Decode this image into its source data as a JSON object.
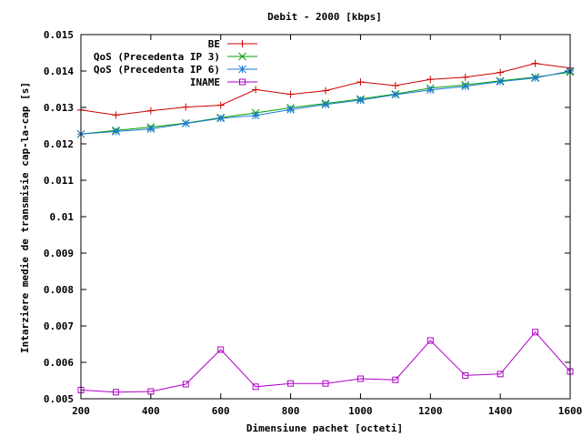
{
  "chart_data": {
    "type": "line",
    "title": "Debit - 2000 [kbps]",
    "xlabel": "Dimensiune pachet [octeti]",
    "ylabel": "Intarziere medie de transmisie cap-la-cap [s]",
    "xlim": [
      200,
      1600
    ],
    "ylim": [
      0.005,
      0.015
    ],
    "grid": false,
    "legend_position": "top-right",
    "x_ticks": [
      200,
      400,
      600,
      800,
      1000,
      1200,
      1400,
      1600
    ],
    "x_tick_labels": [
      "200",
      "400",
      "600",
      "800",
      "1000",
      "1200",
      "1400",
      "1600"
    ],
    "y_ticks": [
      0.005,
      0.006,
      0.007,
      0.008,
      0.009,
      0.01,
      0.011,
      0.012,
      0.013,
      0.014,
      0.015
    ],
    "y_tick_labels": [
      "0.005",
      "0.006",
      "0.007",
      "0.008",
      "0.009",
      "0.01",
      "0.011",
      "0.012",
      "0.013",
      "0.014",
      "0.015"
    ],
    "x": [
      200,
      300,
      400,
      500,
      600,
      700,
      800,
      900,
      1000,
      1100,
      1200,
      1300,
      1400,
      1500,
      1600
    ],
    "series": [
      {
        "name": "BE",
        "color": "#cc0000",
        "marker": "plus",
        "values": [
          0.01293,
          0.01279,
          0.01291,
          0.01301,
          0.01306,
          0.01349,
          0.01336,
          0.01346,
          0.0137,
          0.0136,
          0.01377,
          0.01383,
          0.01396,
          0.01421,
          0.01408
        ]
      },
      {
        "name": "QoS (Precedenta IP 3)",
        "color": "#00a000",
        "marker": "cross",
        "values": [
          0.01227,
          0.01237,
          0.01246,
          0.01257,
          0.01272,
          0.01285,
          0.01299,
          0.01311,
          0.01323,
          0.01337,
          0.01353,
          0.01362,
          0.01373,
          0.01383,
          0.01397
        ]
      },
      {
        "name": "QoS (Precedenta IP 6)",
        "color": "#1e78dc",
        "marker": "star",
        "values": [
          0.01227,
          0.01234,
          0.01241,
          0.01256,
          0.0127,
          0.01278,
          0.01294,
          0.01308,
          0.0132,
          0.01335,
          0.01348,
          0.01358,
          0.01371,
          0.01381,
          0.014
        ]
      },
      {
        "name": "INAME",
        "color": "#b000c8",
        "marker": "square",
        "values": [
          0.00524,
          0.00518,
          0.0052,
          0.0054,
          0.00635,
          0.00533,
          0.00542,
          0.00542,
          0.00555,
          0.00552,
          0.0066,
          0.00564,
          0.00568,
          0.00683,
          0.00575
        ]
      }
    ]
  }
}
